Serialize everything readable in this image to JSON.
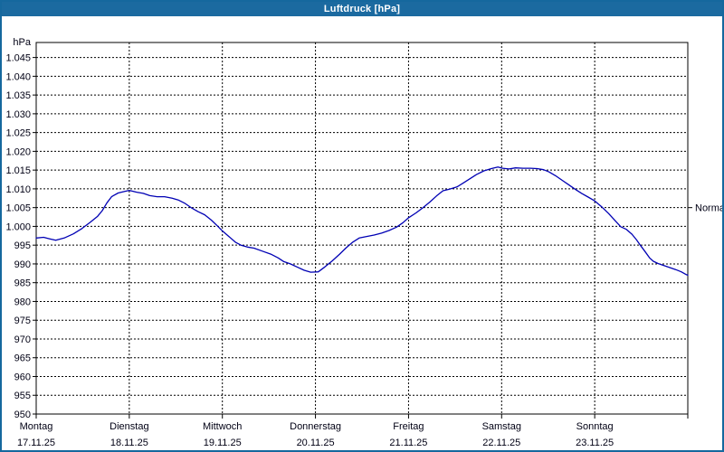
{
  "window": {
    "title": "Luftdruck [hPa]"
  },
  "colors": {
    "titlebar_bg": "#1b6aa0",
    "titlebar_text": "#ffffff",
    "window_border": "#15689e",
    "background": "#ffffff",
    "axis": "#000000",
    "grid": "#000000",
    "label_text": "#000014",
    "series_line": "#0000b4"
  },
  "chart_data": {
    "type": "line",
    "title": "Luftdruck [hPa]",
    "y_unit_label": "hPa",
    "ylim": [
      950,
      1049
    ],
    "y_tick_step": 5,
    "y_tick_labels": [
      950,
      955,
      960,
      965,
      970,
      975,
      980,
      985,
      990,
      995,
      1000,
      1005,
      1010,
      1015,
      1020,
      1025,
      1030,
      1035,
      1040,
      1045
    ],
    "y_gridlines": [
      955,
      960,
      965,
      970,
      975,
      980,
      985,
      990,
      995,
      1000,
      1005,
      1010,
      1015,
      1020,
      1025,
      1030,
      1035,
      1040,
      1045
    ],
    "grid_style": "dashed",
    "xlim_days": [
      0,
      7
    ],
    "x_days": [
      {
        "name": "Montag",
        "date": "17.11.25",
        "t": 0
      },
      {
        "name": "Dienstag",
        "date": "18.11.25",
        "t": 1
      },
      {
        "name": "Mittwoch",
        "date": "19.11.25",
        "t": 2
      },
      {
        "name": "Donnerstag",
        "date": "20.11.25",
        "t": 3
      },
      {
        "name": "Freitag",
        "date": "21.11.25",
        "t": 4
      },
      {
        "name": "Samstag",
        "date": "22.11.25",
        "t": 5
      },
      {
        "name": "Sonntag",
        "date": "23.11.25",
        "t": 6
      }
    ],
    "normal_marker": {
      "label": "Normal",
      "value_hpa": 1005
    },
    "series": [
      {
        "name": "Luftdruck",
        "color": "#0000b4",
        "points": [
          [
            0.0,
            996.9
          ],
          [
            0.08,
            997.1
          ],
          [
            0.14,
            996.7
          ],
          [
            0.21,
            996.3
          ],
          [
            0.3,
            996.9
          ],
          [
            0.4,
            998.0
          ],
          [
            0.49,
            999.4
          ],
          [
            0.58,
            1001.1
          ],
          [
            0.66,
            1002.7
          ],
          [
            0.71,
            1004.2
          ],
          [
            0.76,
            1006.3
          ],
          [
            0.81,
            1007.9
          ],
          [
            0.88,
            1008.9
          ],
          [
            0.95,
            1009.3
          ],
          [
            1.0,
            1009.6
          ],
          [
            1.08,
            1009.1
          ],
          [
            1.15,
            1008.8
          ],
          [
            1.22,
            1008.2
          ],
          [
            1.3,
            1007.9
          ],
          [
            1.38,
            1007.9
          ],
          [
            1.46,
            1007.5
          ],
          [
            1.53,
            1007.0
          ],
          [
            1.6,
            1006.1
          ],
          [
            1.67,
            1004.9
          ],
          [
            1.74,
            1003.9
          ],
          [
            1.81,
            1003.1
          ],
          [
            1.88,
            1001.7
          ],
          [
            1.94,
            1000.3
          ],
          [
            2.0,
            998.8
          ],
          [
            2.07,
            997.3
          ],
          [
            2.14,
            995.8
          ],
          [
            2.2,
            995.0
          ],
          [
            2.27,
            994.5
          ],
          [
            2.34,
            994.2
          ],
          [
            2.43,
            993.4
          ],
          [
            2.52,
            992.6
          ],
          [
            2.6,
            991.6
          ],
          [
            2.66,
            990.6
          ],
          [
            2.73,
            990.0
          ],
          [
            2.81,
            989.1
          ],
          [
            2.88,
            988.3
          ],
          [
            2.95,
            987.8
          ],
          [
            3.03,
            987.9
          ],
          [
            3.1,
            989.2
          ],
          [
            3.18,
            990.8
          ],
          [
            3.26,
            992.6
          ],
          [
            3.33,
            994.3
          ],
          [
            3.4,
            995.8
          ],
          [
            3.47,
            996.9
          ],
          [
            3.55,
            997.3
          ],
          [
            3.63,
            997.7
          ],
          [
            3.71,
            998.2
          ],
          [
            3.79,
            998.9
          ],
          [
            3.87,
            999.8
          ],
          [
            3.94,
            1001.0
          ],
          [
            4.0,
            1002.3
          ],
          [
            4.08,
            1003.6
          ],
          [
            4.15,
            1004.9
          ],
          [
            4.23,
            1006.5
          ],
          [
            4.3,
            1008.1
          ],
          [
            4.37,
            1009.5
          ],
          [
            4.44,
            1009.9
          ],
          [
            4.52,
            1010.5
          ],
          [
            4.59,
            1011.6
          ],
          [
            4.66,
            1012.7
          ],
          [
            4.73,
            1013.8
          ],
          [
            4.81,
            1014.8
          ],
          [
            4.89,
            1015.4
          ],
          [
            4.96,
            1015.8
          ],
          [
            5.01,
            1015.5
          ],
          [
            5.08,
            1015.3
          ],
          [
            5.15,
            1015.6
          ],
          [
            5.23,
            1015.5
          ],
          [
            5.31,
            1015.5
          ],
          [
            5.38,
            1015.4
          ],
          [
            5.45,
            1015.1
          ],
          [
            5.51,
            1014.5
          ],
          [
            5.58,
            1013.5
          ],
          [
            5.65,
            1012.3
          ],
          [
            5.72,
            1011.1
          ],
          [
            5.79,
            1009.9
          ],
          [
            5.86,
            1008.8
          ],
          [
            5.93,
            1007.8
          ],
          [
            6.0,
            1006.8
          ],
          [
            6.08,
            1005.1
          ],
          [
            6.15,
            1003.4
          ],
          [
            6.22,
            1001.5
          ],
          [
            6.28,
            999.9
          ],
          [
            6.34,
            999.2
          ],
          [
            6.4,
            997.9
          ],
          [
            6.45,
            996.4
          ],
          [
            6.49,
            995.0
          ],
          [
            6.54,
            993.3
          ],
          [
            6.59,
            991.6
          ],
          [
            6.63,
            990.7
          ],
          [
            6.68,
            990.1
          ],
          [
            6.74,
            989.6
          ],
          [
            6.8,
            989.1
          ],
          [
            6.87,
            988.5
          ],
          [
            6.93,
            987.9
          ],
          [
            6.98,
            987.2
          ],
          [
            7.0,
            987.0
          ]
        ]
      }
    ]
  }
}
